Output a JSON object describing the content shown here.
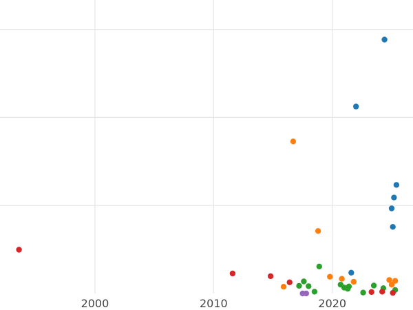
{
  "chart_data": {
    "type": "scatter",
    "title": "",
    "xlabel": "",
    "ylabel": "",
    "xlim": [
      1992,
      2026.8
    ],
    "ylim": [
      0,
      100
    ],
    "x_ticks": [
      {
        "value": 2000,
        "label": "2000"
      },
      {
        "value": 2010,
        "label": "2010"
      },
      {
        "value": 2020,
        "label": "2020"
      }
    ],
    "y_grid": [
      30,
      60,
      90
    ],
    "grid": true,
    "legend": "none",
    "series": [
      {
        "color": "#1f77b4",
        "points": [
          {
            "x": 2024.4,
            "y": 86.5
          },
          {
            "x": 2022.0,
            "y": 63.7
          },
          {
            "x": 2025.4,
            "y": 37.0
          },
          {
            "x": 2025.2,
            "y": 32.7
          },
          {
            "x": 2025.0,
            "y": 29.0
          },
          {
            "x": 2025.1,
            "y": 22.7
          },
          {
            "x": 2021.6,
            "y": 7.1
          }
        ]
      },
      {
        "color": "#ff7f0e",
        "points": [
          {
            "x": 2016.7,
            "y": 51.8
          },
          {
            "x": 2018.8,
            "y": 21.3
          },
          {
            "x": 2019.8,
            "y": 5.7
          },
          {
            "x": 2020.8,
            "y": 5.0
          },
          {
            "x": 2021.8,
            "y": 4.0
          },
          {
            "x": 2015.9,
            "y": 2.3
          },
          {
            "x": 2024.8,
            "y": 4.6
          },
          {
            "x": 2025.3,
            "y": 4.3
          },
          {
            "x": 2025.0,
            "y": 3.0
          }
        ]
      },
      {
        "color": "#2ca02c",
        "points": [
          {
            "x": 2018.9,
            "y": 9.2
          },
          {
            "x": 2017.6,
            "y": 4.1
          },
          {
            "x": 2017.2,
            "y": 2.6
          },
          {
            "x": 2018.0,
            "y": 2.5
          },
          {
            "x": 2018.5,
            "y": 0.6
          },
          {
            "x": 2020.7,
            "y": 3.0
          },
          {
            "x": 2021.0,
            "y": 2.0
          },
          {
            "x": 2021.3,
            "y": 1.6
          },
          {
            "x": 2021.4,
            "y": 2.4
          },
          {
            "x": 2022.6,
            "y": 0.3
          },
          {
            "x": 2023.5,
            "y": 2.7
          },
          {
            "x": 2024.3,
            "y": 1.8
          },
          {
            "x": 2025.3,
            "y": 1.2
          }
        ]
      },
      {
        "color": "#d62728",
        "points": [
          {
            "x": 1993.6,
            "y": 14.9
          },
          {
            "x": 2011.6,
            "y": 6.8
          },
          {
            "x": 2014.8,
            "y": 5.9
          },
          {
            "x": 2016.4,
            "y": 3.8
          },
          {
            "x": 2023.3,
            "y": 0.5
          },
          {
            "x": 2024.2,
            "y": 0.6
          },
          {
            "x": 2025.1,
            "y": 0.2
          }
        ]
      },
      {
        "color": "#9467bd",
        "points": [
          {
            "x": 2017.5,
            "y": 0.0
          },
          {
            "x": 2017.8,
            "y": 0.0
          }
        ]
      }
    ]
  }
}
